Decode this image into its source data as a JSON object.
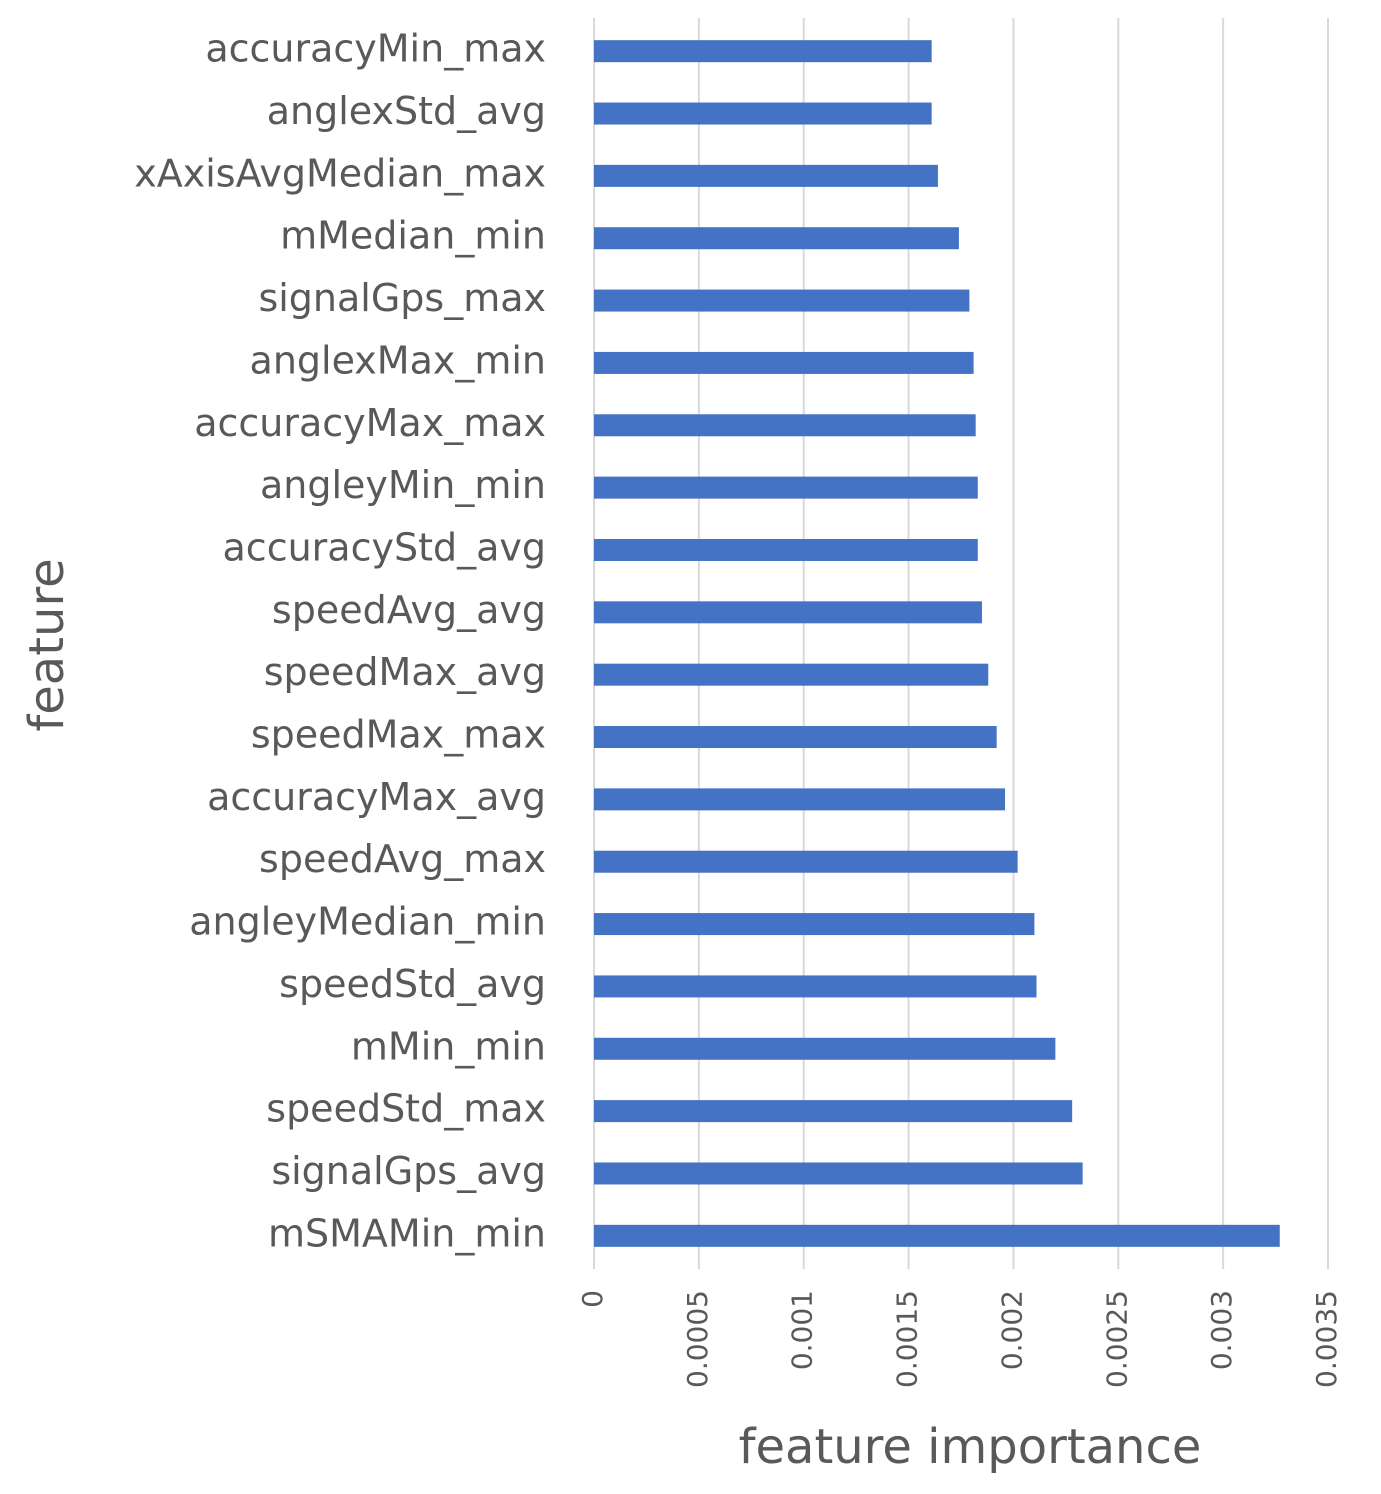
{
  "chart_data": {
    "type": "bar",
    "orientation": "horizontal",
    "x_label": "feature importance",
    "y_label": "feature",
    "categories": [
      "accuracyMin_max",
      "anglexStd_avg",
      "xAxisAvgMedian_max",
      "mMedian_min",
      "signalGps_max",
      "anglexMax_min",
      "accuracyMax_max",
      "angleyMin_min",
      "accuracyStd_avg",
      "speedAvg_avg",
      "speedMax_avg",
      "speedMax_max",
      "accuracyMax_avg",
      "speedAvg_max",
      "angleyMedian_min",
      "speedStd_avg",
      "mMin_min",
      "speedStd_max",
      "signalGps_avg",
      "mSMAMin_min"
    ],
    "values": [
      0.00161,
      0.00161,
      0.00164,
      0.00174,
      0.00179,
      0.00181,
      0.00182,
      0.00183,
      0.00183,
      0.00185,
      0.00188,
      0.00192,
      0.00196,
      0.00202,
      0.0021,
      0.00211,
      0.0022,
      0.00228,
      0.00233,
      0.00327
    ],
    "color": "#4472c4",
    "xlim": [
      0,
      0.0035
    ],
    "xticks": [
      0,
      0.0005,
      0.001,
      0.0015,
      0.002,
      0.0025,
      0.003,
      0.0035
    ],
    "grid": true
  }
}
